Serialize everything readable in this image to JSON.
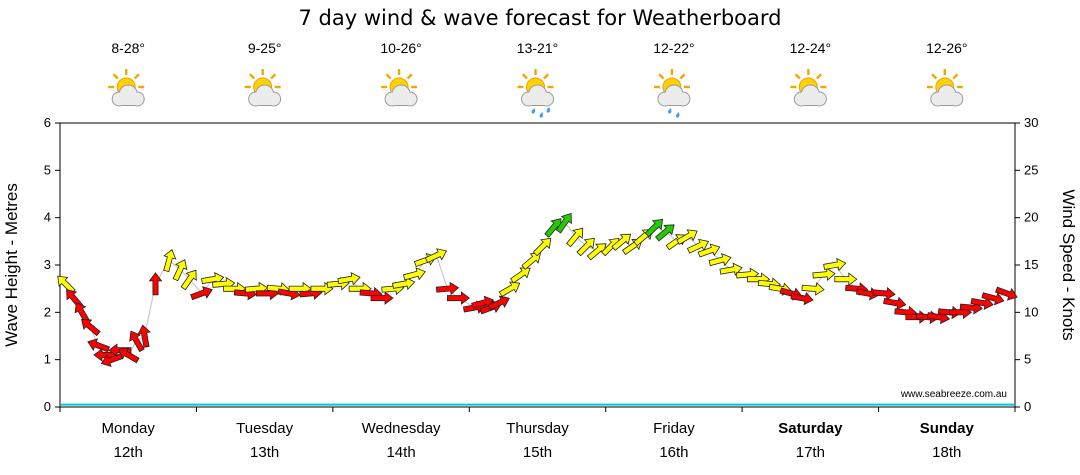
{
  "title": "7 day wind & wave forecast for Weatherboard",
  "watermark": "www.seabreeze.com.au",
  "axes": {
    "left_label": "Wave Height - Metres",
    "right_label": "Wind Speed - Knots",
    "left_ticks": [
      0,
      1,
      2,
      3,
      4,
      5,
      6
    ],
    "right_ticks": [
      0,
      5,
      10,
      15,
      20,
      25,
      30
    ]
  },
  "days": [
    {
      "name": "Monday",
      "date": "12th",
      "temp": "8-28°",
      "icon": "partly-cloudy",
      "drops": 0,
      "bold": false
    },
    {
      "name": "Tuesday",
      "date": "13th",
      "temp": "9-25°",
      "icon": "partly-cloudy",
      "drops": 0,
      "bold": false
    },
    {
      "name": "Wednesday",
      "date": "14th",
      "temp": "10-26°",
      "icon": "partly-cloudy",
      "drops": 0,
      "bold": false
    },
    {
      "name": "Thursday",
      "date": "15th",
      "temp": "13-21°",
      "icon": "partly-cloudy-rain",
      "drops": 3,
      "bold": false
    },
    {
      "name": "Friday",
      "date": "16th",
      "temp": "12-22°",
      "icon": "partly-cloudy-rain",
      "drops": 2,
      "bold": false
    },
    {
      "name": "Saturday",
      "date": "17th",
      "temp": "12-24°",
      "icon": "partly-cloudy",
      "drops": 0,
      "bold": true
    },
    {
      "name": "Sunday",
      "date": "18th",
      "temp": "12-26°",
      "icon": "partly-cloudy",
      "drops": 0,
      "bold": true
    }
  ],
  "chart_data": {
    "type": "scatter",
    "title": "7 day wind & wave forecast for Weatherboard",
    "x_axis": {
      "unit": "days",
      "range": [
        0,
        7
      ],
      "categories": [
        "Monday 12th",
        "Tuesday 13th",
        "Wednesday 14th",
        "Thursday 15th",
        "Friday 16th",
        "Saturday 17th",
        "Sunday 18th"
      ]
    },
    "left_axis": {
      "label": "Wave Height - Metres",
      "range": [
        0,
        6
      ],
      "ticks": [
        0,
        1,
        2,
        3,
        4,
        5,
        6
      ]
    },
    "right_axis": {
      "label": "Wind Speed - Knots",
      "range": [
        0,
        30
      ],
      "ticks": [
        0,
        5,
        10,
        15,
        20,
        25,
        30
      ]
    },
    "wave_height_series": {
      "color": "#00cccc",
      "constant_m": 0.05
    },
    "wind_series": {
      "units": "knots",
      "point_format": [
        "day_x",
        "speed_knots",
        "arrow_rotation_deg",
        "color_code"
      ],
      "colors": {
        "r": "#ff0000",
        "y": "#ffff00",
        "g": "#22cc00"
      },
      "connector_color": "#c0c0c0",
      "points": [
        [
          0.04,
          13,
          315,
          "y"
        ],
        [
          0.1,
          11.5,
          320,
          "r"
        ],
        [
          0.16,
          10,
          330,
          "r"
        ],
        [
          0.22,
          8.5,
          310,
          "r"
        ],
        [
          0.28,
          6.5,
          290,
          "r"
        ],
        [
          0.33,
          5.5,
          270,
          "r"
        ],
        [
          0.38,
          5,
          250,
          "r"
        ],
        [
          0.44,
          6,
          270,
          "r"
        ],
        [
          0.5,
          5.5,
          300,
          "r"
        ],
        [
          0.56,
          7,
          330,
          "r"
        ],
        [
          0.62,
          7.5,
          350,
          "r"
        ],
        [
          0.7,
          13,
          0,
          "r"
        ],
        [
          0.8,
          15.5,
          15,
          "y"
        ],
        [
          0.88,
          14.5,
          25,
          "y"
        ],
        [
          0.95,
          13.5,
          35,
          "y"
        ],
        [
          1.04,
          12,
          70,
          "r"
        ],
        [
          1.12,
          13.5,
          80,
          "y"
        ],
        [
          1.2,
          13,
          85,
          "y"
        ],
        [
          1.28,
          12.5,
          90,
          "y"
        ],
        [
          1.36,
          12,
          95,
          "r"
        ],
        [
          1.44,
          12.5,
          85,
          "y"
        ],
        [
          1.52,
          12,
          90,
          "r"
        ],
        [
          1.6,
          12.5,
          95,
          "y"
        ],
        [
          1.68,
          12,
          100,
          "r"
        ],
        [
          1.76,
          12.5,
          90,
          "y"
        ],
        [
          1.84,
          12,
          85,
          "r"
        ],
        [
          1.92,
          12.5,
          90,
          "y"
        ],
        [
          2.04,
          13,
          85,
          "y"
        ],
        [
          2.12,
          13.5,
          80,
          "y"
        ],
        [
          2.2,
          12.5,
          90,
          "y"
        ],
        [
          2.28,
          12,
          95,
          "r"
        ],
        [
          2.36,
          11.5,
          90,
          "r"
        ],
        [
          2.44,
          12.5,
          85,
          "y"
        ],
        [
          2.52,
          13,
          80,
          "y"
        ],
        [
          2.6,
          14,
          75,
          "y"
        ],
        [
          2.68,
          15.5,
          70,
          "y"
        ],
        [
          2.76,
          16,
          65,
          "y"
        ],
        [
          2.84,
          12.5,
          85,
          "r"
        ],
        [
          2.92,
          11.5,
          90,
          "r"
        ],
        [
          3.04,
          10.5,
          80,
          "r"
        ],
        [
          3.1,
          11,
          75,
          "r"
        ],
        [
          3.16,
          10.5,
          70,
          "r"
        ],
        [
          3.22,
          11,
          65,
          "r"
        ],
        [
          3.3,
          12.5,
          60,
          "y"
        ],
        [
          3.38,
          14,
          55,
          "y"
        ],
        [
          3.46,
          15.5,
          50,
          "y"
        ],
        [
          3.54,
          17,
          45,
          "y"
        ],
        [
          3.62,
          19,
          40,
          "g"
        ],
        [
          3.7,
          19.5,
          35,
          "g"
        ],
        [
          3.78,
          18,
          40,
          "y"
        ],
        [
          3.86,
          17,
          45,
          "y"
        ],
        [
          3.94,
          16.5,
          50,
          "y"
        ],
        [
          4.04,
          17,
          45,
          "y"
        ],
        [
          4.12,
          17.5,
          50,
          "y"
        ],
        [
          4.2,
          17,
          55,
          "y"
        ],
        [
          4.28,
          18,
          50,
          "y"
        ],
        [
          4.36,
          19,
          45,
          "g"
        ],
        [
          4.44,
          18.5,
          50,
          "g"
        ],
        [
          4.52,
          17.5,
          55,
          "y"
        ],
        [
          4.6,
          18,
          60,
          "y"
        ],
        [
          4.68,
          17,
          65,
          "y"
        ],
        [
          4.76,
          16.5,
          70,
          "y"
        ],
        [
          4.84,
          15.5,
          75,
          "y"
        ],
        [
          4.92,
          14.5,
          80,
          "y"
        ],
        [
          5.04,
          14,
          85,
          "y"
        ],
        [
          5.12,
          13.5,
          90,
          "y"
        ],
        [
          5.2,
          13,
          95,
          "y"
        ],
        [
          5.28,
          12.5,
          100,
          "y"
        ],
        [
          5.36,
          12,
          105,
          "r"
        ],
        [
          5.44,
          11.5,
          100,
          "r"
        ],
        [
          5.52,
          12.5,
          95,
          "y"
        ],
        [
          5.6,
          14,
          85,
          "y"
        ],
        [
          5.68,
          15,
          80,
          "y"
        ],
        [
          5.76,
          13.5,
          90,
          "y"
        ],
        [
          5.84,
          12.5,
          95,
          "r"
        ],
        [
          5.92,
          12,
          100,
          "r"
        ],
        [
          6.04,
          12,
          95,
          "r"
        ],
        [
          6.12,
          11,
          100,
          "r"
        ],
        [
          6.2,
          10,
          95,
          "r"
        ],
        [
          6.28,
          9.5,
          90,
          "r"
        ],
        [
          6.36,
          9.5,
          95,
          "r"
        ],
        [
          6.44,
          9.5,
          100,
          "r"
        ],
        [
          6.52,
          10,
          95,
          "r"
        ],
        [
          6.6,
          10,
          90,
          "r"
        ],
        [
          6.68,
          10.5,
          95,
          "r"
        ],
        [
          6.76,
          11,
          100,
          "r"
        ],
        [
          6.84,
          11.5,
          105,
          "r"
        ],
        [
          6.94,
          12,
          110,
          "r"
        ]
      ]
    }
  }
}
